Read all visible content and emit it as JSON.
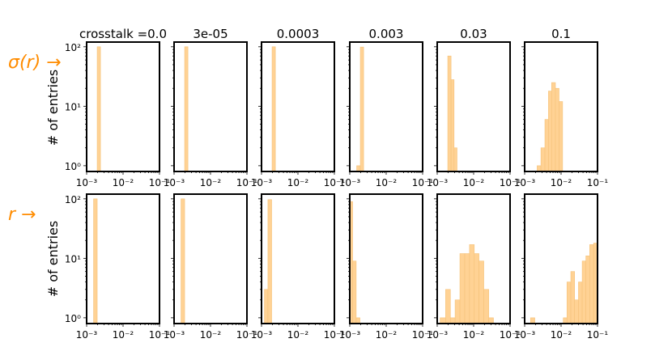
{
  "row_labels": [
    "σ(r) →",
    "r →"
  ],
  "row_label_color": "#ff8c00",
  "bar_fill": "#ffd294",
  "bar_stroke": "#f5c27a",
  "ylabel": "# of entries",
  "y_ticks": [
    {
      "value": 1,
      "label": "10⁰"
    },
    {
      "value": 10,
      "label": "10¹"
    },
    {
      "value": 100,
      "label": "10²"
    }
  ],
  "chart_data": [
    {
      "type": "bar",
      "row": 0,
      "col": 0,
      "title": "crosstalk =0.0",
      "xscale": "log",
      "yscale": "log",
      "xlim": [
        0.001,
        0.1
      ],
      "ylim": [
        0.8,
        120
      ],
      "x_ticks": [
        0.001,
        0.01,
        0.1
      ],
      "x_tick_labels": [
        "10⁻³",
        "10⁻²",
        "10⁻¹"
      ],
      "bins": [
        {
          "x0": 0.00195,
          "x1": 0.0024,
          "count": 100
        }
      ]
    },
    {
      "type": "bar",
      "row": 0,
      "col": 1,
      "title": "3e-05",
      "xscale": "log",
      "yscale": "log",
      "xlim": [
        0.001,
        0.1
      ],
      "ylim": [
        0.8,
        120
      ],
      "x_ticks": [
        0.001,
        0.01,
        0.1
      ],
      "x_tick_labels": [
        "10⁻³",
        "10⁻²",
        "10⁻¹"
      ],
      "bins": [
        {
          "x0": 0.00195,
          "x1": 0.0024,
          "count": 100
        }
      ]
    },
    {
      "type": "bar",
      "row": 0,
      "col": 2,
      "title": "0.0003",
      "xscale": "log",
      "yscale": "log",
      "xlim": [
        0.001,
        0.1
      ],
      "ylim": [
        0.8,
        120
      ],
      "x_ticks": [
        0.001,
        0.01,
        0.1
      ],
      "x_tick_labels": [
        "10⁻³",
        "10⁻²",
        "10⁻¹"
      ],
      "bins": [
        {
          "x0": 0.00195,
          "x1": 0.0024,
          "count": 100
        }
      ]
    },
    {
      "type": "bar",
      "row": 0,
      "col": 3,
      "title": "0.003",
      "xscale": "log",
      "yscale": "log",
      "xlim": [
        0.001,
        0.1
      ],
      "ylim": [
        0.8,
        120
      ],
      "x_ticks": [
        0.001,
        0.01,
        0.1
      ],
      "x_tick_labels": [
        "10⁻³",
        "10⁻²",
        "10⁻¹"
      ],
      "bins": [
        {
          "x0": 0.00155,
          "x1": 0.00195,
          "count": 1
        },
        {
          "x0": 0.00195,
          "x1": 0.0024,
          "count": 99
        }
      ]
    },
    {
      "type": "bar",
      "row": 0,
      "col": 4,
      "title": "0.03",
      "xscale": "log",
      "yscale": "log",
      "xlim": [
        0.001,
        0.1
      ],
      "ylim": [
        0.8,
        120
      ],
      "x_ticks": [
        0.001,
        0.01,
        0.1
      ],
      "x_tick_labels": [
        "10⁻³",
        "10⁻²",
        "10⁻¹"
      ],
      "bins": [
        {
          "x0": 0.00195,
          "x1": 0.0024,
          "count": 70
        },
        {
          "x0": 0.0024,
          "x1": 0.0029,
          "count": 28
        },
        {
          "x0": 0.0029,
          "x1": 0.0035,
          "count": 2
        }
      ]
    },
    {
      "type": "bar",
      "row": 0,
      "col": 5,
      "title": "0.1",
      "xscale": "log",
      "yscale": "log",
      "xlim": [
        0.001,
        0.1
      ],
      "ylim": [
        0.8,
        120
      ],
      "x_ticks": [
        0.001,
        0.01,
        0.1
      ],
      "x_tick_labels": [
        "10⁻³",
        "10⁻²",
        "10⁻¹"
      ],
      "bins": [
        {
          "x0": 0.0022,
          "x1": 0.0028,
          "count": 1
        },
        {
          "x0": 0.0028,
          "x1": 0.0036,
          "count": 2
        },
        {
          "x0": 0.0036,
          "x1": 0.0045,
          "count": 6
        },
        {
          "x0": 0.0045,
          "x1": 0.0055,
          "count": 18
        },
        {
          "x0": 0.0055,
          "x1": 0.007,
          "count": 25
        },
        {
          "x0": 0.007,
          "x1": 0.0088,
          "count": 20
        },
        {
          "x0": 0.0088,
          "x1": 0.011,
          "count": 12
        }
      ]
    },
    {
      "type": "bar",
      "row": 1,
      "col": 0,
      "title": "",
      "xscale": "log",
      "yscale": "log",
      "xlim": [
        0.001,
        0.1
      ],
      "ylim": [
        0.8,
        120
      ],
      "x_ticks": [
        0.001,
        0.01,
        0.1
      ],
      "x_tick_labels": [
        "10⁻³",
        "10⁻²",
        "10⁻¹"
      ],
      "bins": [
        {
          "x0": 0.00155,
          "x1": 0.00195,
          "count": 100
        }
      ]
    },
    {
      "type": "bar",
      "row": 1,
      "col": 1,
      "title": "",
      "xscale": "log",
      "yscale": "log",
      "xlim": [
        0.001,
        0.1
      ],
      "ylim": [
        0.8,
        120
      ],
      "x_ticks": [
        0.001,
        0.01,
        0.1
      ],
      "x_tick_labels": [
        "10⁻³",
        "10⁻²",
        "10⁻¹"
      ],
      "bins": [
        {
          "x0": 0.00155,
          "x1": 0.00195,
          "count": 100
        }
      ]
    },
    {
      "type": "bar",
      "row": 1,
      "col": 2,
      "title": "",
      "xscale": "log",
      "yscale": "log",
      "xlim": [
        0.001,
        0.1
      ],
      "ylim": [
        0.8,
        120
      ],
      "x_ticks": [
        0.001,
        0.01,
        0.1
      ],
      "x_tick_labels": [
        "10⁻³",
        "10⁻²",
        "10⁻¹"
      ],
      "bins": [
        {
          "x0": 0.0012,
          "x1": 0.0015,
          "count": 3
        },
        {
          "x0": 0.0015,
          "x1": 0.0019,
          "count": 97
        }
      ]
    },
    {
      "type": "bar",
      "row": 1,
      "col": 3,
      "title": "",
      "xscale": "log",
      "yscale": "log",
      "xlim": [
        0.001,
        0.1
      ],
      "ylim": [
        0.8,
        120
      ],
      "x_ticks": [
        0.001,
        0.01,
        0.1
      ],
      "x_tick_labels": [
        "10⁻³",
        "10⁻²",
        "10⁻¹"
      ],
      "bins": [
        {
          "x0": 0.00095,
          "x1": 0.0012,
          "count": 90
        },
        {
          "x0": 0.0012,
          "x1": 0.0015,
          "count": 9
        },
        {
          "x0": 0.0015,
          "x1": 0.0019,
          "count": 1
        }
      ]
    },
    {
      "type": "bar",
      "row": 1,
      "col": 4,
      "title": "",
      "xscale": "log",
      "yscale": "log",
      "xlim": [
        0.001,
        0.1
      ],
      "ylim": [
        0.8,
        120
      ],
      "x_ticks": [
        0.001,
        0.01,
        0.1
      ],
      "x_tick_labels": [
        "10⁻³",
        "10⁻²",
        "10⁻¹"
      ],
      "bins": [
        {
          "x0": 0.0012,
          "x1": 0.0017,
          "count": 1
        },
        {
          "x0": 0.0017,
          "x1": 0.0023,
          "count": 3
        },
        {
          "x0": 0.0023,
          "x1": 0.0031,
          "count": 1
        },
        {
          "x0": 0.0031,
          "x1": 0.0042,
          "count": 2
        },
        {
          "x0": 0.0042,
          "x1": 0.0057,
          "count": 12
        },
        {
          "x0": 0.0057,
          "x1": 0.0077,
          "count": 12
        },
        {
          "x0": 0.0077,
          "x1": 0.0104,
          "count": 17
        },
        {
          "x0": 0.0104,
          "x1": 0.014,
          "count": 12
        },
        {
          "x0": 0.014,
          "x1": 0.019,
          "count": 9
        },
        {
          "x0": 0.019,
          "x1": 0.026,
          "count": 3
        },
        {
          "x0": 0.026,
          "x1": 0.035,
          "count": 1
        }
      ]
    },
    {
      "type": "bar",
      "row": 1,
      "col": 5,
      "title": "",
      "xscale": "log",
      "yscale": "log",
      "xlim": [
        0.001,
        0.1
      ],
      "ylim": [
        0.8,
        120
      ],
      "x_ticks": [
        0.001,
        0.01,
        0.1
      ],
      "x_tick_labels": [
        "10⁻³",
        "10⁻²",
        "10⁻¹"
      ],
      "bins": [
        {
          "x0": 0.00145,
          "x1": 0.0019,
          "count": 1
        },
        {
          "x0": 0.0115,
          "x1": 0.0145,
          "count": 1
        },
        {
          "x0": 0.0145,
          "x1": 0.0185,
          "count": 4
        },
        {
          "x0": 0.0185,
          "x1": 0.0235,
          "count": 6
        },
        {
          "x0": 0.0235,
          "x1": 0.03,
          "count": 2
        },
        {
          "x0": 0.03,
          "x1": 0.038,
          "count": 4
        },
        {
          "x0": 0.038,
          "x1": 0.048,
          "count": 9
        },
        {
          "x0": 0.048,
          "x1": 0.061,
          "count": 11
        },
        {
          "x0": 0.061,
          "x1": 0.078,
          "count": 17
        },
        {
          "x0": 0.078,
          "x1": 0.1,
          "count": 18
        }
      ]
    }
  ]
}
